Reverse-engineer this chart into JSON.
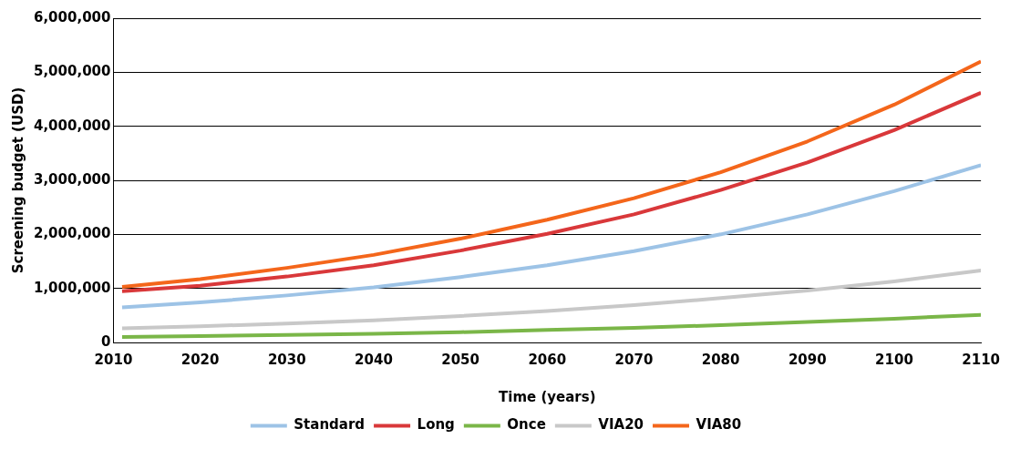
{
  "chart_data": {
    "type": "line",
    "xlabel": "Time (years)",
    "ylabel": "Screening budget (USD)",
    "x": [
      2011,
      2020,
      2030,
      2040,
      2050,
      2060,
      2070,
      2080,
      2090,
      2100,
      2110
    ],
    "series": [
      {
        "name": "Standard",
        "color": "#9dc3e6",
        "values": [
          650000,
          740000,
          870000,
          1020000,
          1210000,
          1430000,
          1690000,
          2000000,
          2370000,
          2800000,
          3280000
        ]
      },
      {
        "name": "Long",
        "color": "#d9383a",
        "values": [
          950000,
          1050000,
          1220000,
          1430000,
          1700000,
          2010000,
          2370000,
          2820000,
          3330000,
          3930000,
          4620000
        ]
      },
      {
        "name": "Once",
        "color": "#7ab648",
        "values": [
          100000,
          120000,
          140000,
          160000,
          190000,
          230000,
          270000,
          320000,
          380000,
          440000,
          510000
        ]
      },
      {
        "name": "VIA20",
        "color": "#c8c8c8",
        "values": [
          260000,
          300000,
          350000,
          410000,
          490000,
          580000,
          690000,
          820000,
          960000,
          1130000,
          1330000
        ]
      },
      {
        "name": "VIA80",
        "color": "#f4661b",
        "values": [
          1030000,
          1170000,
          1380000,
          1620000,
          1920000,
          2270000,
          2670000,
          3150000,
          3720000,
          4400000,
          5200000
        ]
      }
    ],
    "xlim": [
      2010,
      2110
    ],
    "xticks": [
      2010,
      2020,
      2030,
      2040,
      2050,
      2060,
      2070,
      2080,
      2090,
      2100,
      2110
    ],
    "ylim": [
      0,
      6000000
    ],
    "yticks": [
      0,
      {
        "value": 1000000,
        "label": "1,000,000"
      },
      {
        "value": 2000000,
        "label": "2,000,000"
      },
      {
        "value": 3000000,
        "label": "3,000,000"
      },
      {
        "value": 4000000,
        "label": "4,000,000"
      },
      {
        "value": 5000000,
        "label": "5,000,000"
      },
      {
        "value": 6000000,
        "label": "6,000,000"
      }
    ],
    "grid": "y",
    "legend": "bottom",
    "marker": "none",
    "line_style": "solid"
  }
}
